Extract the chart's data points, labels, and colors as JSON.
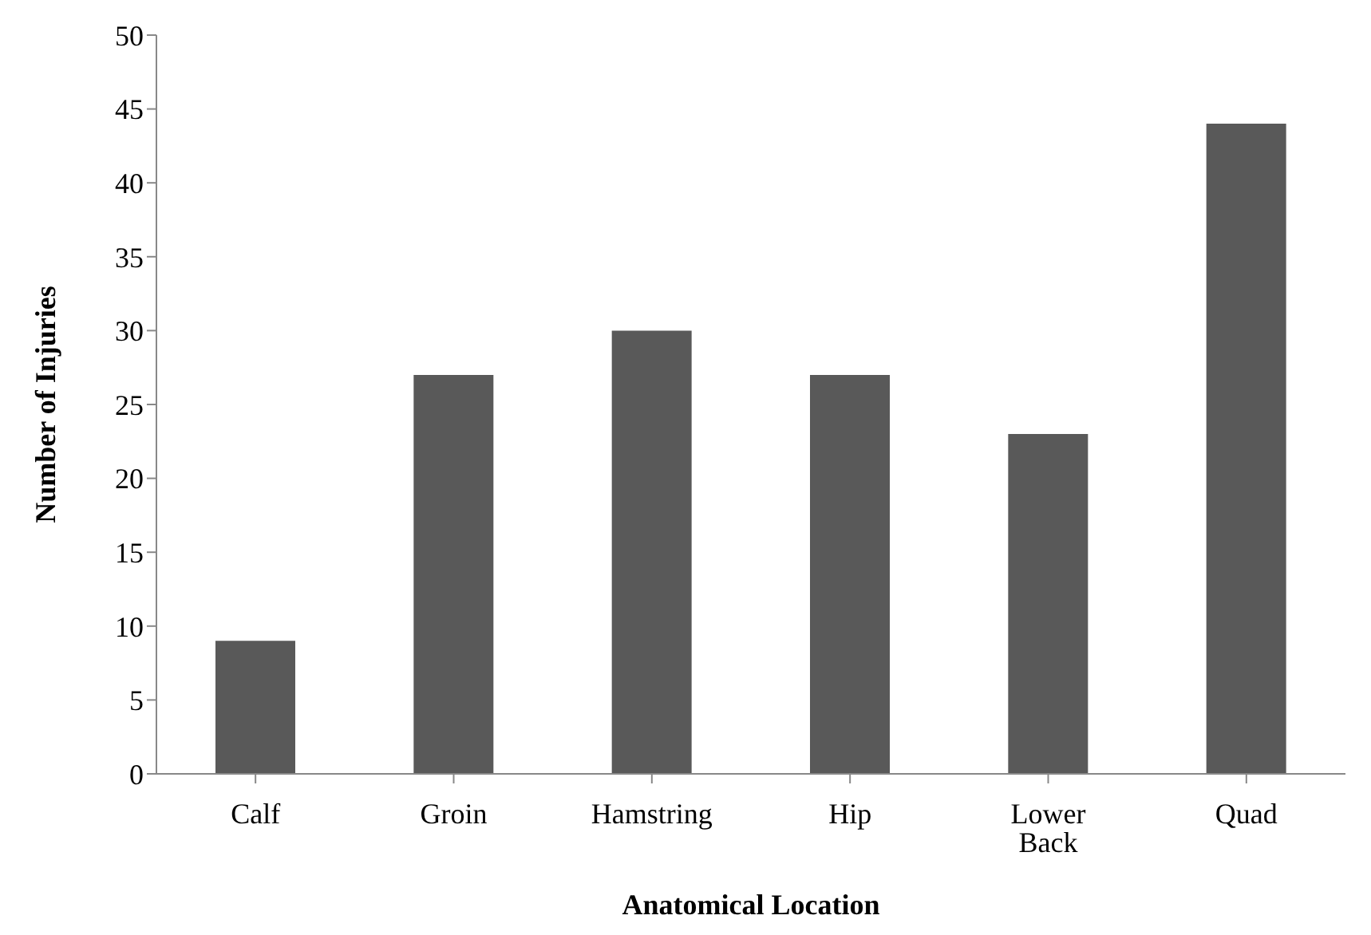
{
  "chart_data": {
    "type": "bar",
    "xlabel": "Anatomical Location",
    "ylabel": "Number of Injuries",
    "categories": [
      "Calf",
      "Groin",
      "Hamstring",
      "Hip",
      "Lower Back",
      "Quad"
    ],
    "values": [
      9,
      27,
      30,
      27,
      23,
      44
    ],
    "color": "#595959",
    "ylim": [
      0,
      50
    ],
    "yticks": [
      0,
      5,
      10,
      15,
      20,
      25,
      30,
      35,
      40,
      45,
      50
    ],
    "grid": false,
    "legend": false
  }
}
